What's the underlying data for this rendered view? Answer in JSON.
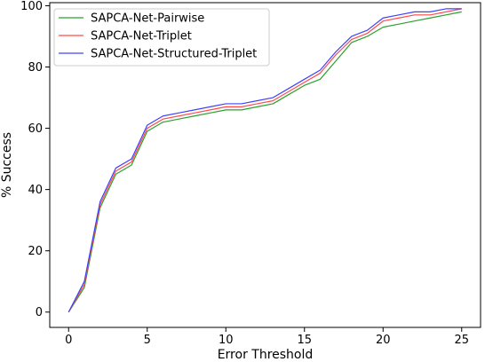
{
  "chart_data": {
    "type": "line",
    "xlabel": "Error Threshold",
    "ylabel": "% Success",
    "xlim": [
      -1.2,
      26.2
    ],
    "ylim": [
      -5,
      101
    ],
    "xticks": [
      0,
      5,
      10,
      15,
      20,
      25
    ],
    "yticks": [
      0,
      20,
      40,
      60,
      80,
      100
    ],
    "xtick_labels": [
      "0",
      "5",
      "10",
      "15",
      "20",
      "25"
    ],
    "ytick_labels": [
      "0",
      "20",
      "40",
      "60",
      "80",
      "100"
    ],
    "grid": false,
    "legend_position": "top-left",
    "x": [
      0,
      1,
      2,
      3,
      4,
      5,
      6,
      7,
      8,
      9,
      10,
      11,
      12,
      13,
      14,
      15,
      16,
      17,
      18,
      19,
      20,
      21,
      22,
      23,
      24,
      25
    ],
    "series": [
      {
        "name": "SAPCA-Net-Pairwise",
        "color": "#2ca02c",
        "values": [
          0,
          8,
          34,
          45,
          48,
          59,
          62,
          63,
          64,
          65,
          66,
          66,
          67,
          68,
          71,
          74,
          76,
          82,
          88,
          90,
          93,
          94,
          95,
          96,
          97,
          98
        ]
      },
      {
        "name": "SAPCA-Net-Triplet",
        "color": "#ff4b4b",
        "values": [
          0,
          9,
          35,
          46,
          49,
          60,
          63,
          64,
          65,
          66,
          67,
          67,
          68,
          69,
          72,
          75,
          78,
          84,
          89,
          91,
          95,
          96,
          97,
          97,
          98,
          99
        ]
      },
      {
        "name": "SAPCA-Net-Structured-Triplet",
        "color": "#4040ff",
        "values": [
          0,
          10,
          36,
          47,
          50,
          61,
          64,
          65,
          66,
          67,
          68,
          68,
          69,
          70,
          73,
          76,
          79,
          85,
          90,
          92,
          96,
          97,
          98,
          98,
          99,
          99
        ]
      }
    ]
  }
}
